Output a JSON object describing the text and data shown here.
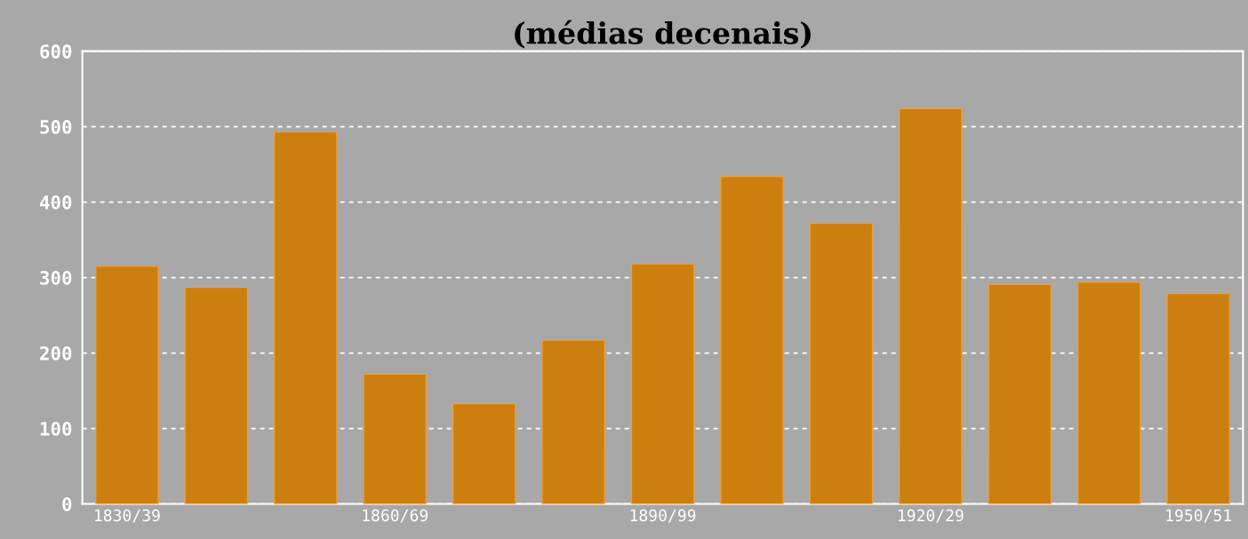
{
  "chart_data": {
    "type": "bar",
    "title": "(médias decenais)",
    "categories": [
      "1830/39",
      null,
      null,
      "1860/69",
      null,
      null,
      "1890/99",
      null,
      null,
      "1920/29",
      null,
      null,
      "1950/51"
    ],
    "values": [
      315,
      287,
      493,
      172,
      133,
      217,
      318,
      434,
      372,
      524,
      291,
      294,
      279
    ],
    "color": "#cc7f0f",
    "ylim": [
      0,
      600
    ],
    "yticks": [
      0,
      100,
      200,
      300,
      400,
      500,
      600
    ],
    "grid": "y"
  }
}
